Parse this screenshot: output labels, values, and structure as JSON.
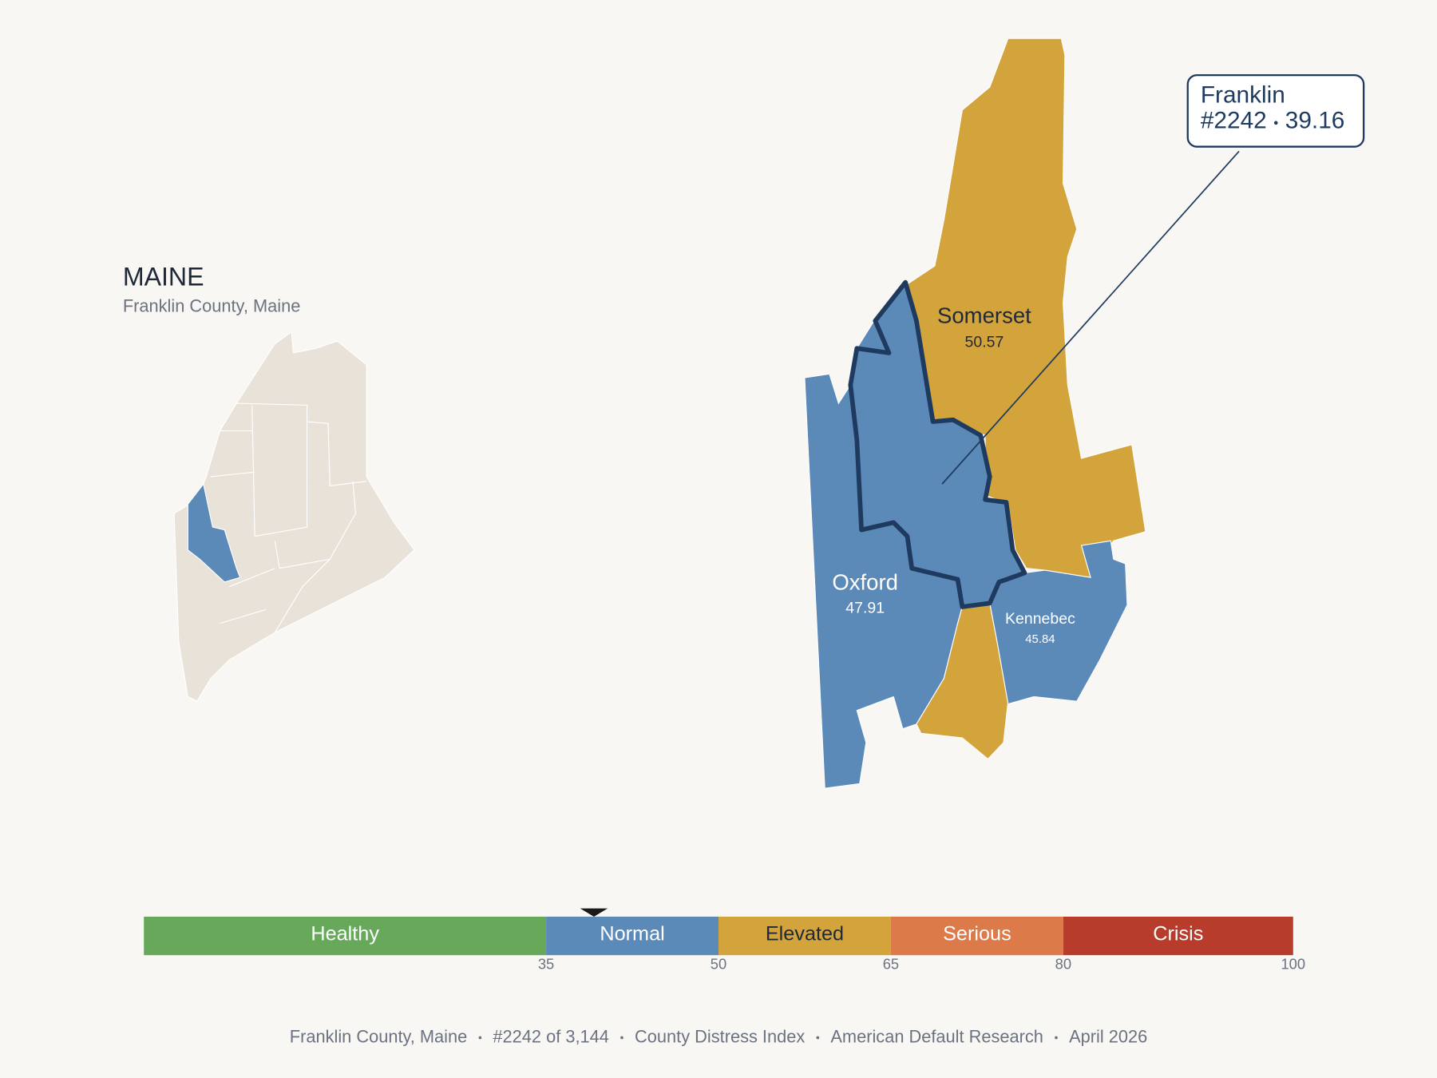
{
  "inset": {
    "title": "MAINE",
    "subtitle": "Franklin County, Maine"
  },
  "counties": [
    {
      "name": "Somerset",
      "score": 50.57
    },
    {
      "name": "Oxford",
      "score": 47.91
    },
    {
      "name": "Kennebec",
      "score": 45.84
    }
  ],
  "selected": {
    "name": "Franklin",
    "rank": "#2242",
    "score": 39.16
  },
  "scale": {
    "lim": [
      0,
      100
    ],
    "ticks": [
      35,
      50,
      65,
      80,
      100
    ],
    "bands": [
      {
        "label": "Healthy",
        "color": "#67a85a",
        "text_color": "#ffffff"
      },
      {
        "label": "Normal",
        "color": "#5b8ab9",
        "text_color": "#ffffff"
      },
      {
        "label": "Elevated",
        "color": "#d4a43c",
        "text_color": "#1f2937"
      },
      {
        "label": "Serious",
        "color": "#dc7a4a",
        "text_color": "#ffffff"
      },
      {
        "label": "Crisis",
        "color": "#b83c2c",
        "text_color": "#ffffff"
      }
    ]
  },
  "footer": [
    "Franklin County, Maine",
    "#2242 of 3,144",
    "County Distress Index",
    "American Default Research",
    "April 2026"
  ]
}
